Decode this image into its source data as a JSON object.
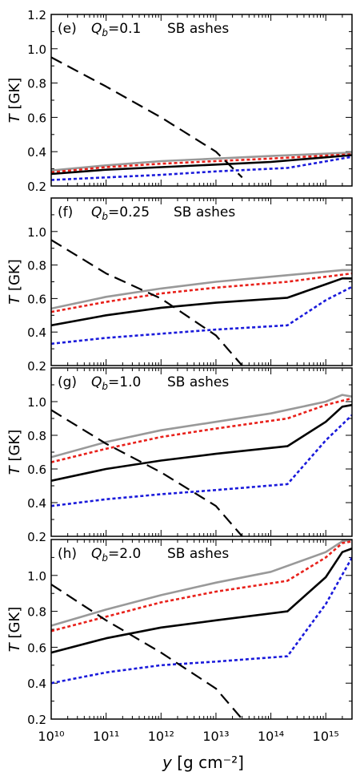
{
  "figure": {
    "x_axis_label": "y [g cm⁻²]",
    "x_tick_labels": [
      "10¹⁰",
      "10¹¹",
      "10¹²",
      "10¹³",
      "10¹⁴",
      "10¹⁵"
    ]
  },
  "chart_data": [
    {
      "type": "line",
      "panel_label": "(e)",
      "qb_label": "Q_b=0.1",
      "ash_label": "SB ashes",
      "ylabel": "T [GK]",
      "xscale": "log",
      "xlim": [
        10000000000.0,
        3000000000000000.0
      ],
      "ylim": [
        0.2,
        1.2
      ],
      "yticks": [
        0.2,
        0.4,
        0.6,
        0.8,
        1.0,
        1.2
      ],
      "ytick_labels": [
        "0.2",
        "0.4",
        "0.6",
        "0.8",
        "1.0",
        "1.2"
      ],
      "series": [
        {
          "color": "#999999",
          "style": "solid",
          "x": [
            10000000000.0,
            100000000000.0,
            1000000000000.0,
            10000000000000.0,
            100000000000000.0,
            3000000000000000.0
          ],
          "y": [
            0.29,
            0.32,
            0.345,
            0.36,
            0.375,
            0.395
          ]
        },
        {
          "color": "#e8201a",
          "style": "dotted",
          "x": [
            10000000000.0,
            100000000000.0,
            1000000000000.0,
            10000000000000.0,
            100000000000000.0,
            3000000000000000.0
          ],
          "y": [
            0.28,
            0.31,
            0.33,
            0.345,
            0.36,
            0.385
          ]
        },
        {
          "color": "#000000",
          "style": "solid",
          "x": [
            10000000000.0,
            100000000000.0,
            1000000000000.0,
            10000000000000.0,
            100000000000000.0,
            3000000000000000.0
          ],
          "y": [
            0.27,
            0.295,
            0.31,
            0.325,
            0.34,
            0.38
          ]
        },
        {
          "color": "#1a1adb",
          "style": "dotted",
          "x": [
            10000000000.0,
            100000000000.0,
            1000000000000.0,
            10000000000000.0,
            200000000000000.0,
            3000000000000000.0
          ],
          "y": [
            0.235,
            0.25,
            0.265,
            0.285,
            0.305,
            0.37
          ]
        },
        {
          "color": "#000000",
          "style": "dashed",
          "x": [
            10000000000.0,
            100000000000.0,
            1000000000000.0,
            10000000000000.0,
            30000000000000.0
          ],
          "y": [
            0.95,
            0.78,
            0.6,
            0.4,
            0.25
          ]
        }
      ]
    },
    {
      "type": "line",
      "panel_label": "(f)",
      "qb_label": "Q_b=0.25",
      "ash_label": "SB ashes",
      "ylabel": "T [GK]",
      "xscale": "log",
      "xlim": [
        10000000000.0,
        3000000000000000.0
      ],
      "ylim": [
        0.2,
        1.2
      ],
      "yticks": [
        0.2,
        0.4,
        0.6,
        0.8,
        1.0
      ],
      "ytick_labels": [
        "0.2",
        "0.4",
        "0.6",
        "0.8",
        "1.0"
      ],
      "series": [
        {
          "color": "#999999",
          "style": "solid",
          "x": [
            10000000000.0,
            100000000000.0,
            1000000000000.0,
            10000000000000.0,
            100000000000000.0,
            2000000000000000.0,
            3000000000000000.0
          ],
          "y": [
            0.54,
            0.61,
            0.66,
            0.7,
            0.73,
            0.77,
            0.77
          ]
        },
        {
          "color": "#e8201a",
          "style": "dotted",
          "x": [
            10000000000.0,
            100000000000.0,
            1000000000000.0,
            10000000000000.0,
            200000000000000.0,
            1000000000000000.0,
            3000000000000000.0
          ],
          "y": [
            0.52,
            0.58,
            0.63,
            0.665,
            0.7,
            0.73,
            0.75
          ]
        },
        {
          "color": "#000000",
          "style": "solid",
          "x": [
            10000000000.0,
            100000000000.0,
            1000000000000.0,
            10000000000000.0,
            200000000000000.0,
            1000000000000000.0,
            2000000000000000.0,
            3000000000000000.0
          ],
          "y": [
            0.44,
            0.5,
            0.545,
            0.575,
            0.605,
            0.685,
            0.72,
            0.72
          ]
        },
        {
          "color": "#1a1adb",
          "style": "dotted",
          "x": [
            10000000000.0,
            100000000000.0,
            1000000000000.0,
            10000000000000.0,
            200000000000000.0,
            1000000000000000.0,
            3000000000000000.0
          ],
          "y": [
            0.33,
            0.365,
            0.39,
            0.415,
            0.44,
            0.59,
            0.67
          ]
        },
        {
          "color": "#000000",
          "style": "dashed",
          "x": [
            10000000000.0,
            100000000000.0,
            1000000000000.0,
            10000000000000.0,
            30000000000000.0
          ],
          "y": [
            0.95,
            0.75,
            0.6,
            0.38,
            0.2
          ]
        }
      ]
    },
    {
      "type": "line",
      "panel_label": "(g)",
      "qb_label": "Q_b=1.0",
      "ash_label": "SB ashes",
      "ylabel": "T [GK]",
      "xscale": "log",
      "xlim": [
        10000000000.0,
        3000000000000000.0
      ],
      "ylim": [
        0.2,
        1.2
      ],
      "yticks": [
        0.2,
        0.4,
        0.6,
        0.8,
        1.0
      ],
      "ytick_labels": [
        "0.2",
        "0.4",
        "0.6",
        "0.8",
        "1.0"
      ],
      "series": [
        {
          "color": "#999999",
          "style": "solid",
          "x": [
            10000000000.0,
            100000000000.0,
            1000000000000.0,
            10000000000000.0,
            100000000000000.0,
            1000000000000000.0,
            2000000000000000.0,
            3000000000000000.0
          ],
          "y": [
            0.67,
            0.76,
            0.83,
            0.88,
            0.93,
            1.0,
            1.04,
            1.03
          ]
        },
        {
          "color": "#e8201a",
          "style": "dotted",
          "x": [
            10000000000.0,
            100000000000.0,
            1000000000000.0,
            10000000000000.0,
            200000000000000.0,
            1000000000000000.0,
            3000000000000000.0
          ],
          "y": [
            0.64,
            0.72,
            0.79,
            0.84,
            0.9,
            0.98,
            1.02
          ]
        },
        {
          "color": "#000000",
          "style": "solid",
          "x": [
            10000000000.0,
            100000000000.0,
            1000000000000.0,
            10000000000000.0,
            200000000000000.0,
            1000000000000000.0,
            2000000000000000.0,
            3000000000000000.0
          ],
          "y": [
            0.53,
            0.6,
            0.65,
            0.69,
            0.735,
            0.88,
            0.97,
            0.98
          ]
        },
        {
          "color": "#1a1adb",
          "style": "dotted",
          "x": [
            10000000000.0,
            100000000000.0,
            1000000000000.0,
            10000000000000.0,
            200000000000000.0,
            1000000000000000.0,
            3000000000000000.0
          ],
          "y": [
            0.38,
            0.42,
            0.45,
            0.475,
            0.51,
            0.77,
            0.92
          ]
        },
        {
          "color": "#000000",
          "style": "dashed",
          "x": [
            10000000000.0,
            100000000000.0,
            1000000000000.0,
            10000000000000.0,
            30000000000000.0
          ],
          "y": [
            0.95,
            0.75,
            0.58,
            0.38,
            0.2
          ]
        }
      ]
    },
    {
      "type": "line",
      "panel_label": "(h)",
      "qb_label": "Q_b=2.0",
      "ash_label": "SB ashes",
      "ylabel": "T [GK]",
      "xscale": "log",
      "xlim": [
        10000000000.0,
        3000000000000000.0
      ],
      "ylim": [
        0.2,
        1.2
      ],
      "yticks": [
        0.2,
        0.4,
        0.6,
        0.8,
        1.0
      ],
      "ytick_labels": [
        "0.2",
        "0.4",
        "0.6",
        "0.8",
        "1.0"
      ],
      "series": [
        {
          "color": "#999999",
          "style": "solid",
          "x": [
            10000000000.0,
            100000000000.0,
            1000000000000.0,
            10000000000000.0,
            100000000000000.0,
            1000000000000000.0,
            2000000000000000.0,
            3000000000000000.0
          ],
          "y": [
            0.72,
            0.81,
            0.89,
            0.96,
            1.02,
            1.13,
            1.19,
            1.2
          ]
        },
        {
          "color": "#e8201a",
          "style": "dotted",
          "x": [
            10000000000.0,
            100000000000.0,
            1000000000000.0,
            10000000000000.0,
            200000000000000.0,
            1000000000000000.0,
            2000000000000000.0,
            3000000000000000.0
          ],
          "y": [
            0.69,
            0.77,
            0.85,
            0.91,
            0.97,
            1.1,
            1.18,
            1.19
          ]
        },
        {
          "color": "#000000",
          "style": "solid",
          "x": [
            10000000000.0,
            100000000000.0,
            1000000000000.0,
            10000000000000.0,
            200000000000000.0,
            1000000000000000.0,
            2000000000000000.0,
            3000000000000000.0
          ],
          "y": [
            0.57,
            0.65,
            0.71,
            0.75,
            0.8,
            0.99,
            1.13,
            1.15
          ]
        },
        {
          "color": "#1a1adb",
          "style": "dotted",
          "x": [
            10000000000.0,
            100000000000.0,
            1000000000000.0,
            10000000000000.0,
            200000000000000.0,
            1000000000000000.0,
            3000000000000000.0
          ],
          "y": [
            0.4,
            0.46,
            0.5,
            0.52,
            0.55,
            0.84,
            1.1
          ]
        },
        {
          "color": "#000000",
          "style": "dashed",
          "x": [
            10000000000.0,
            100000000000.0,
            1000000000000.0,
            10000000000000.0,
            30000000000000.0
          ],
          "y": [
            0.95,
            0.75,
            0.57,
            0.37,
            0.2
          ]
        }
      ]
    }
  ]
}
